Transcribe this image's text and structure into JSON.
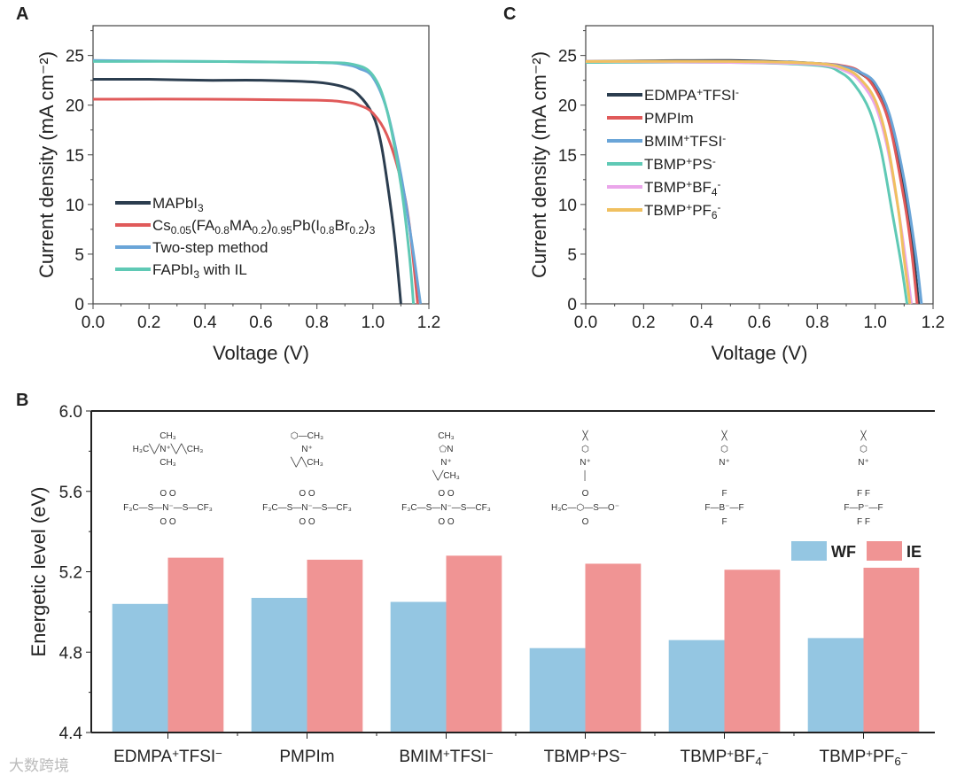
{
  "panel_labels": [
    "A",
    "B",
    "C"
  ],
  "watermark": "大数跨境",
  "colors": {
    "WF": "#94c6e2",
    "IE": "#f09494"
  },
  "chart_data": [
    {
      "id": "A",
      "type": "line",
      "xlabel": "Voltage (V)",
      "ylabel": "Current density (mA cm⁻²)",
      "xlim": [
        0,
        1.2
      ],
      "ylim": [
        0,
        28
      ],
      "xticks": [
        "0.0",
        "0.2",
        "0.4",
        "0.6",
        "0.8",
        "1.0",
        "1.2"
      ],
      "yticks": [
        "0",
        "5",
        "10",
        "15",
        "20",
        "25"
      ],
      "legend_position": "lower-left",
      "series": [
        {
          "name": [
            [
              "MAPbI",
              ""
            ],
            [
              "3",
              "sub"
            ]
          ],
          "color": "#2b3d4f",
          "points": [
            [
              0,
              22.6
            ],
            [
              0.2,
              22.6
            ],
            [
              0.4,
              22.5
            ],
            [
              0.6,
              22.5
            ],
            [
              0.8,
              22.3
            ],
            [
              0.9,
              21.8
            ],
            [
              0.95,
              21.0
            ],
            [
              1.0,
              19.0
            ],
            [
              1.03,
              16
            ],
            [
              1.06,
              10.5
            ],
            [
              1.08,
              6
            ],
            [
              1.1,
              0
            ]
          ]
        },
        {
          "name": [
            [
              "Cs",
              ""
            ],
            [
              "0.05",
              "sub"
            ],
            [
              "(FA",
              ""
            ],
            [
              "0.8",
              "sub"
            ],
            [
              "MA",
              ""
            ],
            [
              "0.2",
              "sub"
            ],
            [
              ")",
              ""
            ],
            [
              "0.95",
              "sub"
            ],
            [
              "Pb(I",
              ""
            ],
            [
              "0.8",
              "sub"
            ],
            [
              "Br",
              ""
            ],
            [
              "0.2",
              "sub"
            ],
            [
              ")",
              ""
            ],
            [
              "3",
              "sub"
            ]
          ],
          "color": "#e05a5a",
          "points": [
            [
              0,
              20.6
            ],
            [
              0.4,
              20.6
            ],
            [
              0.8,
              20.5
            ],
            [
              0.9,
              20.3
            ],
            [
              0.95,
              20.0
            ],
            [
              1.0,
              19.2
            ],
            [
              1.05,
              17
            ],
            [
              1.1,
              12.5
            ],
            [
              1.13,
              8
            ],
            [
              1.16,
              0
            ]
          ]
        },
        {
          "name": [
            [
              "Two-step method",
              ""
            ]
          ],
          "color": "#6aa5d8",
          "points": [
            [
              0,
              24.5
            ],
            [
              0.4,
              24.4
            ],
            [
              0.8,
              24.3
            ],
            [
              0.9,
              24.1
            ],
            [
              0.95,
              23.7
            ],
            [
              1.0,
              22.8
            ],
            [
              1.05,
              19.5
            ],
            [
              1.1,
              13
            ],
            [
              1.14,
              6
            ],
            [
              1.17,
              0
            ]
          ]
        },
        {
          "name": [
            [
              "FAPbI",
              ""
            ],
            [
              "3",
              "sub"
            ],
            [
              " with IL",
              ""
            ]
          ],
          "color": "#5fc9b5",
          "points": [
            [
              0,
              24.4
            ],
            [
              0.4,
              24.4
            ],
            [
              0.8,
              24.3
            ],
            [
              0.93,
              24.1
            ],
            [
              1.0,
              23.0
            ],
            [
              1.05,
              19.5
            ],
            [
              1.1,
              12
            ],
            [
              1.13,
              5
            ],
            [
              1.145,
              0
            ]
          ]
        }
      ]
    },
    {
      "id": "C",
      "type": "line",
      "xlabel": "Voltage (V)",
      "ylabel": "Current density (mA cm⁻²)",
      "xlim": [
        0,
        1.2
      ],
      "ylim": [
        0,
        28
      ],
      "xticks": [
        "0.0",
        "0.2",
        "0.4",
        "0.6",
        "0.8",
        "1.0",
        "1.2"
      ],
      "yticks": [
        "0",
        "5",
        "10",
        "15",
        "20",
        "25"
      ],
      "legend_position": "center-left",
      "series": [
        {
          "name": [
            [
              "EDMPA",
              ""
            ],
            [
              "+",
              "sup"
            ],
            [
              "TFSI",
              ""
            ],
            [
              "-",
              "sup"
            ]
          ],
          "color": "#2b3d4f",
          "points": [
            [
              0,
              24.4
            ],
            [
              0.5,
              24.5
            ],
            [
              0.8,
              24.2
            ],
            [
              0.9,
              23.8
            ],
            [
              0.95,
              23.2
            ],
            [
              1.0,
              21.8
            ],
            [
              1.05,
              18.5
            ],
            [
              1.1,
              11.5
            ],
            [
              1.13,
              5.5
            ],
            [
              1.15,
              0
            ]
          ]
        },
        {
          "name": [
            [
              "PMPIm",
              ""
            ]
          ],
          "color": "#e05a5a",
          "points": [
            [
              0,
              24.4
            ],
            [
              0.5,
              24.4
            ],
            [
              0.8,
              24.2
            ],
            [
              0.9,
              23.9
            ],
            [
              0.95,
              23.3
            ],
            [
              1.0,
              21.6
            ],
            [
              1.05,
              18
            ],
            [
              1.1,
              10.5
            ],
            [
              1.125,
              5.5
            ],
            [
              1.145,
              0
            ]
          ]
        },
        {
          "name": [
            [
              "BMIM",
              ""
            ],
            [
              "+",
              "sup"
            ],
            [
              "TFSI",
              ""
            ],
            [
              "-",
              "sup"
            ]
          ],
          "color": "#6aa5d8",
          "points": [
            [
              0,
              24.4
            ],
            [
              0.5,
              24.4
            ],
            [
              0.8,
              24.2
            ],
            [
              0.9,
              23.8
            ],
            [
              0.95,
              23.3
            ],
            [
              1.0,
              22.2
            ],
            [
              1.05,
              19
            ],
            [
              1.1,
              12.5
            ],
            [
              1.14,
              5
            ],
            [
              1.16,
              0
            ]
          ]
        },
        {
          "name": [
            [
              "TBMP",
              ""
            ],
            [
              "+",
              "sup"
            ],
            [
              "PS",
              ""
            ],
            [
              "-",
              "sup"
            ]
          ],
          "color": "#5fc9b5",
          "points": [
            [
              0,
              24.3
            ],
            [
              0.5,
              24.3
            ],
            [
              0.8,
              24.0
            ],
            [
              0.88,
              23.3
            ],
            [
              0.93,
              22
            ],
            [
              0.98,
              19.5
            ],
            [
              1.02,
              15.5
            ],
            [
              1.06,
              9
            ],
            [
              1.09,
              4
            ],
            [
              1.11,
              0
            ]
          ]
        },
        {
          "name": [
            [
              "TBMP",
              ""
            ],
            [
              "+",
              "sup"
            ],
            [
              "BF",
              ""
            ],
            [
              "4",
              "sub"
            ],
            [
              "-",
              "sup"
            ]
          ],
          "color": "#eaa6ea",
          "points": [
            [
              0,
              24.4
            ],
            [
              0.5,
              24.3
            ],
            [
              0.8,
              24.1
            ],
            [
              0.9,
              23.4
            ],
            [
              0.95,
              22.3
            ],
            [
              1.0,
              20
            ],
            [
              1.04,
              16
            ],
            [
              1.08,
              9.5
            ],
            [
              1.105,
              4.5
            ],
            [
              1.125,
              0
            ]
          ]
        },
        {
          "name": [
            [
              "TBMP",
              ""
            ],
            [
              "+",
              "sup"
            ],
            [
              "PF",
              ""
            ],
            [
              "6",
              "sub"
            ],
            [
              "-",
              "sup"
            ]
          ],
          "color": "#f0c060",
          "points": [
            [
              0,
              24.4
            ],
            [
              0.5,
              24.4
            ],
            [
              0.8,
              24.2
            ],
            [
              0.9,
              23.6
            ],
            [
              0.95,
              22.6
            ],
            [
              1.0,
              20.5
            ],
            [
              1.04,
              16.5
            ],
            [
              1.08,
              9.5
            ],
            [
              1.1,
              4.5
            ],
            [
              1.12,
              0
            ]
          ]
        }
      ]
    },
    {
      "id": "B",
      "type": "bar",
      "ylabel": "Energetic level (eV)",
      "ylim": [
        4.4,
        6.0
      ],
      "yticks": [
        "4.4",
        "4.8",
        "5.2",
        "5.6",
        "6.0"
      ],
      "legend_position": "top-right",
      "categories": [
        [
          [
            "EDMPA",
            ""
          ],
          [
            "+",
            "sup"
          ],
          [
            "TFSI",
            ""
          ],
          [
            "−",
            "sup"
          ]
        ],
        [
          [
            "PMPIm",
            ""
          ]
        ],
        [
          [
            "BMIM",
            ""
          ],
          [
            "+",
            "sup"
          ],
          [
            "TFSI",
            ""
          ],
          [
            "−",
            "sup"
          ]
        ],
        [
          [
            "TBMP",
            ""
          ],
          [
            "+",
            "sup"
          ],
          [
            "PS",
            ""
          ],
          [
            "−",
            "sup"
          ]
        ],
        [
          [
            "TBMP",
            ""
          ],
          [
            "+",
            "sup"
          ],
          [
            "BF",
            ""
          ],
          [
            "4",
            "sub"
          ],
          [
            "−",
            "sup"
          ]
        ],
        [
          [
            "TBMP",
            ""
          ],
          [
            "+",
            "sup"
          ],
          [
            "PF",
            ""
          ],
          [
            "6",
            "sub"
          ],
          [
            "−",
            "sup"
          ]
        ]
      ],
      "series": [
        {
          "name": "WF",
          "values": [
            5.04,
            5.07,
            5.05,
            4.82,
            4.86,
            4.87
          ]
        },
        {
          "name": "IE",
          "values": [
            5.27,
            5.26,
            5.28,
            5.24,
            5.21,
            5.22
          ]
        }
      ],
      "structures": [
        {
          "cation": [
            "CH₃",
            "H₃C╲╱N⁺╲╱╲CH₃",
            "CH₃"
          ],
          "anion": [
            "O      O",
            "F₃C—S—N⁻—S—CF₃",
            "O      O"
          ]
        },
        {
          "cation": [
            "⬡—CH₃",
            "N⁺",
            "╲╱╲CH₃"
          ],
          "anion": [
            "O      O",
            "F₃C—S—N⁻—S—CF₃",
            "O      O"
          ]
        },
        {
          "cation": [
            "CH₃",
            "⬠N",
            "N⁺",
            "╲╱CH₃"
          ],
          "anion": [
            "O      O",
            "F₃C—S—N⁻—S—CF₃",
            "O      O"
          ]
        },
        {
          "cation": [
            "╳",
            "⬡",
            "N⁺",
            "│"
          ],
          "anion": [
            "O",
            "H₃C—⬡—S—O⁻",
            "O"
          ]
        },
        {
          "cation": [
            "╳",
            "⬡",
            "N⁺"
          ],
          "anion": [
            "F",
            "F—B⁻—F",
            "F"
          ]
        },
        {
          "cation": [
            "╳",
            "⬡",
            "N⁺"
          ],
          "anion": [
            "F  F",
            "F—P⁻—F",
            "F  F"
          ]
        }
      ]
    }
  ]
}
